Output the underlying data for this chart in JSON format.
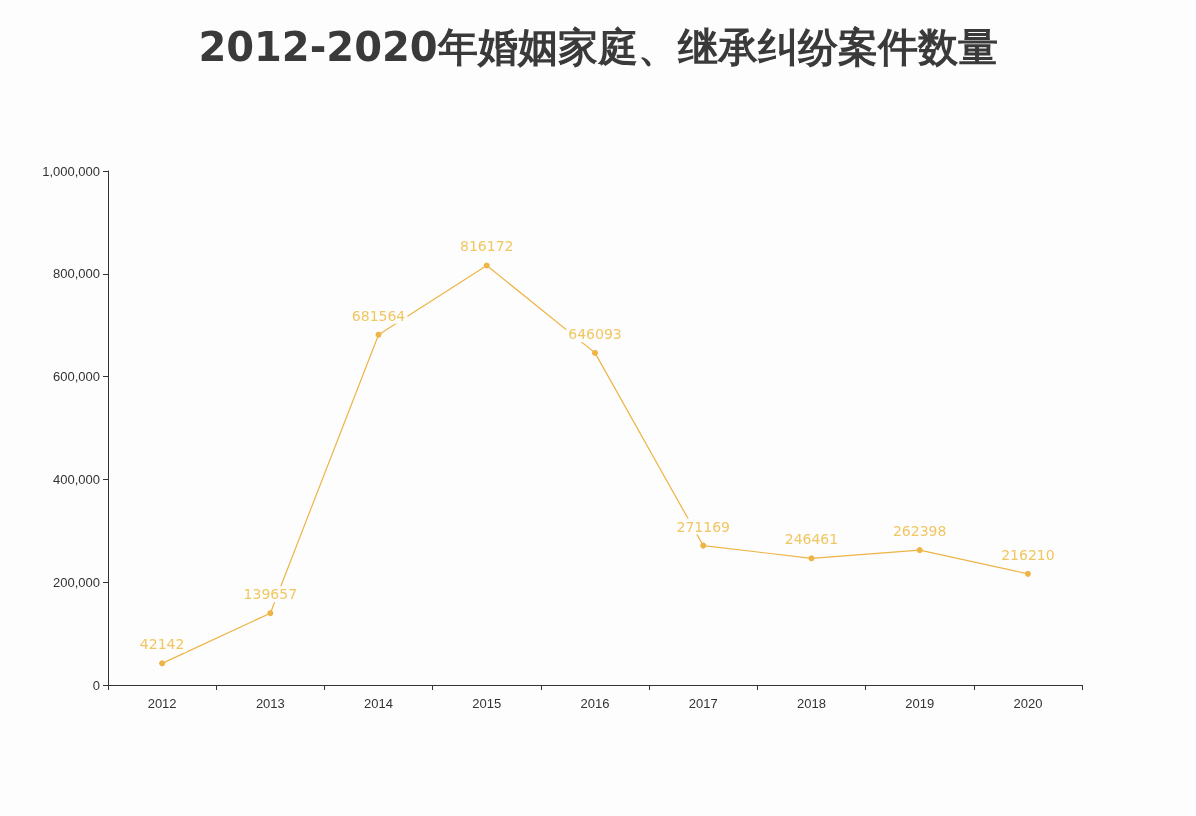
{
  "chart_data": {
    "type": "line",
    "title": "2012-2020年婚姻家庭、继承纠纷案件数量",
    "categories": [
      "2012",
      "2013",
      "2014",
      "2015",
      "2016",
      "2017",
      "2018",
      "2019",
      "2020"
    ],
    "series": [
      {
        "color": "#eeb445",
        "values": [
          42142,
          139657,
          681564,
          816172,
          646093,
          271169,
          246461,
          262398,
          216210
        ]
      }
    ],
    "ylim": [
      0,
      1000000
    ],
    "yticks": [
      {
        "value": 0,
        "label": "0"
      },
      {
        "value": 200000,
        "label": "200,000"
      },
      {
        "value": 400000,
        "label": "400,000"
      },
      {
        "value": 600000,
        "label": "600,000"
      },
      {
        "value": 800000,
        "label": "800,000"
      },
      {
        "value": 1000000,
        "label": "1,000,000"
      }
    ],
    "grid": false,
    "marker": "circle",
    "line_style": "solid",
    "data_labels": true
  }
}
